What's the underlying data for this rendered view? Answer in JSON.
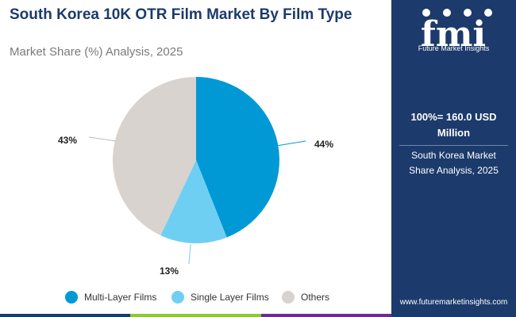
{
  "header": {
    "title": "South Korea 10K OTR Film Market By Film Type",
    "subtitle": "Market Share (%) Analysis, 2025"
  },
  "chart_data": {
    "type": "pie",
    "categories": [
      "Multi-Layer Films",
      "Single Layer Films",
      "Others"
    ],
    "values": [
      44,
      13,
      43
    ],
    "labels": [
      "44%",
      "13%",
      "43%"
    ],
    "colors": [
      "#0099d6",
      "#6fcff2",
      "#d9d3cf"
    ],
    "legend_position": "bottom"
  },
  "sidebar": {
    "logo_text": "Future Market Insights",
    "logo_letters": "fmi",
    "total_line1": "100%= 160.0 USD",
    "total_line2": "Million",
    "desc_line1": "South Korea Market",
    "desc_line2": "Share Analysis, 2025",
    "website": "www.futuremarketinsights.com"
  },
  "footer_colors": [
    "#1c3a6b",
    "#8dc63f",
    "#6a2c91"
  ]
}
